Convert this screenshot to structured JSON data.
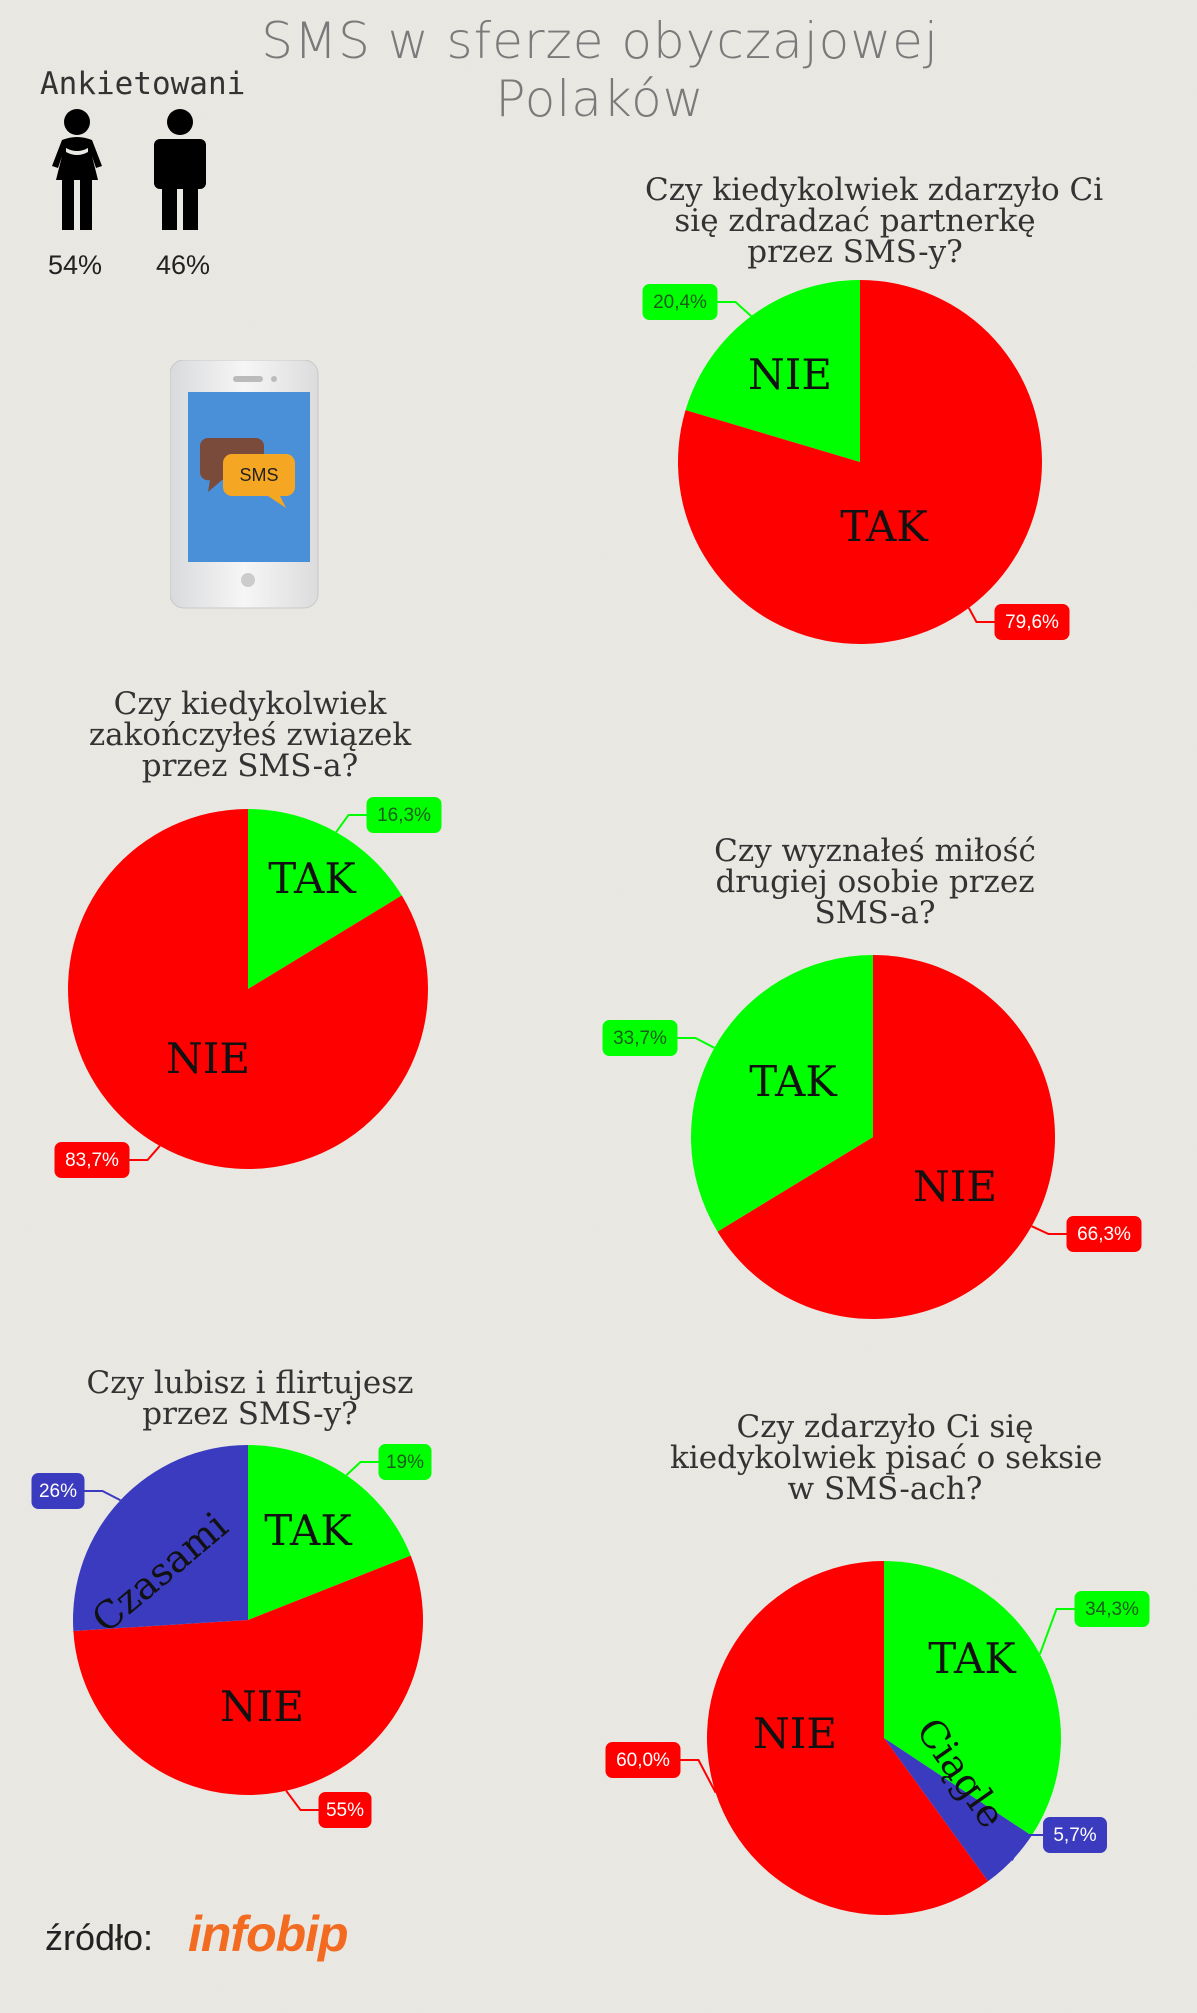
{
  "title_line1": "SMS w sferze obyczajowej",
  "title_line2": "Polaków",
  "respondents": {
    "label": "Ankietowani",
    "female_pct": "54%",
    "male_pct": "46%"
  },
  "phone": {
    "bubble_text": "SMS"
  },
  "source": {
    "label": "źródło:",
    "logo": "infobip"
  },
  "colors": {
    "green": "#00ff00",
    "red": "#ff0000",
    "blue": "#3b3bc0",
    "label_text": "#ffffff"
  },
  "chart_data": [
    {
      "type": "pie",
      "title": [
        "Czy kiedykolwiek zdarzyło Ci",
        "się zdradzać partnerkę",
        "przez SMS-y?"
      ],
      "slices": [
        {
          "name": "NIE",
          "value": 20.4,
          "label": "20,4%",
          "color": "#00ff00"
        },
        {
          "name": "TAK",
          "value": 79.6,
          "label": "79,6%",
          "color": "#ff0000"
        }
      ]
    },
    {
      "type": "pie",
      "title": [
        "Czy kiedykolwiek",
        "zakończyłeś związek",
        "przez SMS-a?"
      ],
      "slices": [
        {
          "name": "TAK",
          "value": 16.3,
          "label": "16,3%",
          "color": "#00ff00"
        },
        {
          "name": "NIE",
          "value": 83.7,
          "label": "83,7%",
          "color": "#ff0000"
        }
      ]
    },
    {
      "type": "pie",
      "title": [
        "Czy wyznałeś miłość",
        "drugiej osobie przez",
        "SMS-a?"
      ],
      "slices": [
        {
          "name": "NIE",
          "value": 66.3,
          "label": "66,3%",
          "color": "#ff0000"
        },
        {
          "name": "TAK",
          "value": 33.7,
          "label": "33,7%",
          "color": "#00ff00"
        }
      ]
    },
    {
      "type": "pie",
      "title": [
        "Czy lubisz i flirtujesz",
        "przez SMS-y?"
      ],
      "slices": [
        {
          "name": "TAK",
          "value": 19,
          "label": "19%",
          "color": "#00ff00"
        },
        {
          "name": "NIE",
          "value": 55,
          "label": "55%",
          "color": "#ff0000"
        },
        {
          "name": "Czasami",
          "value": 26,
          "label": "26%",
          "color": "#3b3bc0"
        }
      ]
    },
    {
      "type": "pie",
      "title": [
        "Czy zdarzyło Ci się",
        "kiedykolwiek pisać o seksie",
        "w SMS-ach?"
      ],
      "slices": [
        {
          "name": "TAK",
          "value": 34.3,
          "label": "34,3%",
          "color": "#00ff00"
        },
        {
          "name": "Ciągle",
          "value": 5.7,
          "label": "5,7%",
          "color": "#3b3bc0"
        },
        {
          "name": "NIE",
          "value": 60.0,
          "label": "60,0%",
          "color": "#ff0000"
        }
      ]
    }
  ]
}
